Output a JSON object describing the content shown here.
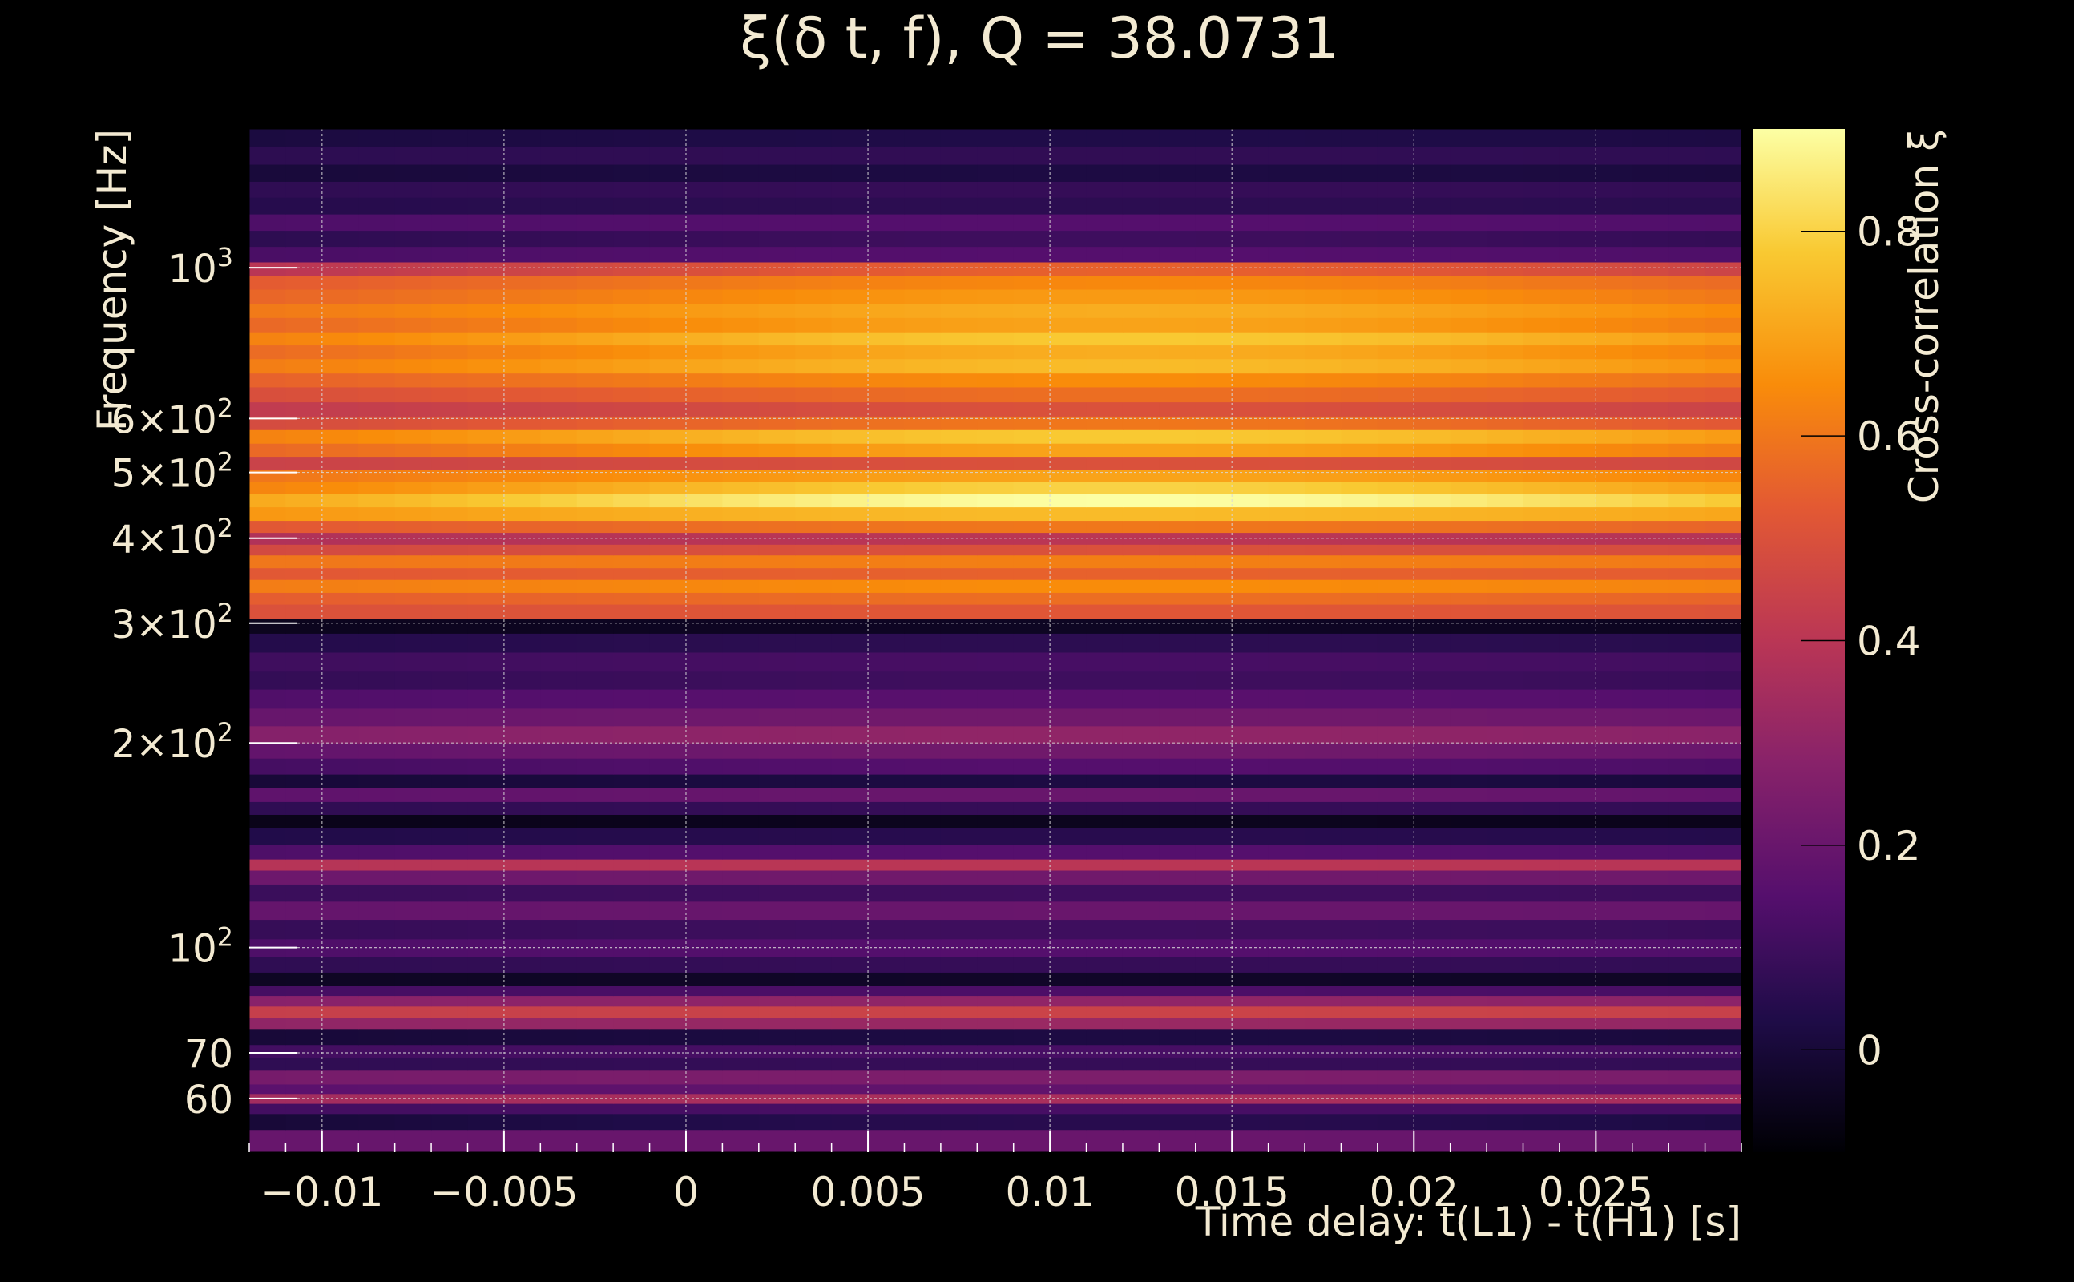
{
  "chart_data": {
    "type": "heatmap",
    "title": "ξ(δ t, f), Q = 38.0731",
    "xlabel": "Time delay: t(L1) - t(H1) [s]",
    "ylabel": "Frequency [Hz]",
    "colorbar_label": "Cross-correlation ξ",
    "xlim": [
      -0.012,
      0.029
    ],
    "ylim": [
      50,
      1600
    ],
    "y_scale": "log",
    "grid": true,
    "colorscale": "inferno",
    "clim": [
      -0.1,
      0.9
    ],
    "x_ticks": [
      {
        "value": -0.01,
        "label": "−0.01"
      },
      {
        "value": -0.005,
        "label": "−0.005"
      },
      {
        "value": 0,
        "label": "0"
      },
      {
        "value": 0.005,
        "label": "0.005"
      },
      {
        "value": 0.01,
        "label": "0.01"
      },
      {
        "value": 0.015,
        "label": "0.015"
      },
      {
        "value": 0.02,
        "label": "0.02"
      },
      {
        "value": 0.025,
        "label": "0.025"
      }
    ],
    "y_ticks": [
      {
        "value": 60,
        "base": "60",
        "exp": ""
      },
      {
        "value": 70,
        "base": "70",
        "exp": ""
      },
      {
        "value": 100,
        "base": "10",
        "exp": "2"
      },
      {
        "value": 200,
        "base": "2×10",
        "exp": "2"
      },
      {
        "value": 300,
        "base": "3×10",
        "exp": "2"
      },
      {
        "value": 400,
        "base": "4×10",
        "exp": "2"
      },
      {
        "value": 500,
        "base": "5×10",
        "exp": "2"
      },
      {
        "value": 600,
        "base": "6×10",
        "exp": "2"
      },
      {
        "value": 1000,
        "base": "10",
        "exp": "3"
      }
    ],
    "colorbar_ticks": [
      {
        "value": 0,
        "label": "0"
      },
      {
        "value": 0.2,
        "label": "0.2"
      },
      {
        "value": 0.4,
        "label": "0.4"
      },
      {
        "value": 0.6,
        "label": "0.6"
      },
      {
        "value": 0.8,
        "label": "0.8"
      }
    ],
    "time_bins": [
      -0.012,
      -0.011,
      -0.01,
      -0.009,
      -0.008,
      -0.007,
      -0.006,
      -0.005,
      -0.004,
      -0.003,
      -0.002,
      -0.001,
      0,
      0.001,
      0.002,
      0.003,
      0.004,
      0.005,
      0.006,
      0.007,
      0.008,
      0.009,
      0.01,
      0.011,
      0.012,
      0.013,
      0.014,
      0.015,
      0.016,
      0.017,
      0.018,
      0.019,
      0.02,
      0.021,
      0.022,
      0.023,
      0.024,
      0.025,
      0.026,
      0.027,
      0.028,
      0.029
    ],
    "freq_bands": [
      {
        "f_lo": 50,
        "f_hi": 54,
        "base": 0.18,
        "peak": 0.2,
        "width": 0.03
      },
      {
        "f_lo": 54,
        "f_hi": 57,
        "base": -0.05,
        "peak": 0.05,
        "width": 0.02
      },
      {
        "f_lo": 57,
        "f_hi": 59,
        "base": 0.1,
        "peak": 0.12,
        "width": 0.02
      },
      {
        "f_lo": 59,
        "f_hi": 61,
        "base": 0.3,
        "peak": 0.36,
        "width": 0.03
      },
      {
        "f_lo": 61,
        "f_hi": 63,
        "base": 0.15,
        "peak": 0.18,
        "width": 0.02
      },
      {
        "f_lo": 63,
        "f_hi": 66,
        "base": 0.22,
        "peak": 0.25,
        "width": 0.02
      },
      {
        "f_lo": 66,
        "f_hi": 69,
        "base": 0.05,
        "peak": 0.08,
        "width": 0.02
      },
      {
        "f_lo": 69,
        "f_hi": 72,
        "base": 0.1,
        "peak": 0.12,
        "width": 0.02
      },
      {
        "f_lo": 72,
        "f_hi": 76,
        "base": -0.02,
        "peak": 0.02,
        "width": 0.02
      },
      {
        "f_lo": 76,
        "f_hi": 79,
        "base": 0.28,
        "peak": 0.32,
        "width": 0.02
      },
      {
        "f_lo": 79,
        "f_hi": 82,
        "base": 0.42,
        "peak": 0.45,
        "width": 0.02
      },
      {
        "f_lo": 82,
        "f_hi": 85,
        "base": 0.26,
        "peak": 0.3,
        "width": 0.02
      },
      {
        "f_lo": 85,
        "f_hi": 88,
        "base": 0.1,
        "peak": 0.13,
        "width": 0.02
      },
      {
        "f_lo": 88,
        "f_hi": 92,
        "base": -0.05,
        "peak": -0.03,
        "width": 0.02
      },
      {
        "f_lo": 92,
        "f_hi": 97,
        "base": 0.05,
        "peak": 0.08,
        "width": 0.02
      },
      {
        "f_lo": 97,
        "f_hi": 103,
        "base": 0.12,
        "peak": 0.15,
        "width": 0.02
      },
      {
        "f_lo": 103,
        "f_hi": 110,
        "base": 0.06,
        "peak": 0.1,
        "width": 0.02
      },
      {
        "f_lo": 110,
        "f_hi": 117,
        "base": 0.18,
        "peak": 0.2,
        "width": 0.02
      },
      {
        "f_lo": 117,
        "f_hi": 124,
        "base": 0.08,
        "peak": 0.1,
        "width": 0.02
      },
      {
        "f_lo": 124,
        "f_hi": 130,
        "base": 0.2,
        "peak": 0.22,
        "width": 0.02
      },
      {
        "f_lo": 130,
        "f_hi": 135,
        "base": 0.38,
        "peak": 0.4,
        "width": 0.02
      },
      {
        "f_lo": 135,
        "f_hi": 142,
        "base": 0.12,
        "peak": 0.15,
        "width": 0.02
      },
      {
        "f_lo": 142,
        "f_hi": 150,
        "base": 0.02,
        "peak": 0.05,
        "width": 0.02
      },
      {
        "f_lo": 150,
        "f_hi": 157,
        "base": -0.07,
        "peak": -0.05,
        "width": 0.02
      },
      {
        "f_lo": 157,
        "f_hi": 164,
        "base": 0.05,
        "peak": 0.08,
        "width": 0.02
      },
      {
        "f_lo": 164,
        "f_hi": 172,
        "base": 0.15,
        "peak": 0.2,
        "width": 0.02
      },
      {
        "f_lo": 172,
        "f_hi": 180,
        "base": -0.02,
        "peak": 0.02,
        "width": 0.02
      },
      {
        "f_lo": 180,
        "f_hi": 190,
        "base": 0.08,
        "peak": 0.15,
        "width": 0.02
      },
      {
        "f_lo": 190,
        "f_hi": 200,
        "base": 0.15,
        "peak": 0.22,
        "width": 0.02
      },
      {
        "f_lo": 200,
        "f_hi": 212,
        "base": 0.22,
        "peak": 0.3,
        "width": 0.025
      },
      {
        "f_lo": 212,
        "f_hi": 225,
        "base": 0.15,
        "peak": 0.22,
        "width": 0.025
      },
      {
        "f_lo": 225,
        "f_hi": 240,
        "base": 0.1,
        "peak": 0.16,
        "width": 0.025
      },
      {
        "f_lo": 240,
        "f_hi": 255,
        "base": 0.05,
        "peak": 0.1,
        "width": 0.02
      },
      {
        "f_lo": 255,
        "f_hi": 272,
        "base": 0.08,
        "peak": 0.12,
        "width": 0.02
      },
      {
        "f_lo": 272,
        "f_hi": 290,
        "base": 0.02,
        "peak": 0.06,
        "width": 0.02
      },
      {
        "f_lo": 290,
        "f_hi": 305,
        "base": -0.06,
        "peak": -0.04,
        "width": 0.02
      },
      {
        "f_lo": 305,
        "f_hi": 320,
        "base": 0.48,
        "peak": 0.52,
        "width": 0.02
      },
      {
        "f_lo": 320,
        "f_hi": 333,
        "base": 0.5,
        "peak": 0.58,
        "width": 0.02
      },
      {
        "f_lo": 333,
        "f_hi": 348,
        "base": 0.58,
        "peak": 0.65,
        "width": 0.02
      },
      {
        "f_lo": 348,
        "f_hi": 362,
        "base": 0.5,
        "peak": 0.55,
        "width": 0.02
      },
      {
        "f_lo": 362,
        "f_hi": 378,
        "base": 0.58,
        "peak": 0.62,
        "width": 0.02
      },
      {
        "f_lo": 378,
        "f_hi": 392,
        "base": 0.45,
        "peak": 0.5,
        "width": 0.02
      },
      {
        "f_lo": 392,
        "f_hi": 408,
        "base": 0.35,
        "peak": 0.4,
        "width": 0.02
      },
      {
        "f_lo": 408,
        "f_hi": 425,
        "base": 0.45,
        "peak": 0.6,
        "width": 0.02
      },
      {
        "f_lo": 425,
        "f_hi": 445,
        "base": 0.6,
        "peak": 0.75,
        "width": 0.02
      },
      {
        "f_lo": 445,
        "f_hi": 465,
        "base": 0.62,
        "peak": 0.9,
        "width": 0.016
      },
      {
        "f_lo": 465,
        "f_hi": 485,
        "base": 0.55,
        "peak": 0.8,
        "width": 0.016
      },
      {
        "f_lo": 485,
        "f_hi": 505,
        "base": 0.55,
        "peak": 0.7,
        "width": 0.016
      },
      {
        "f_lo": 505,
        "f_hi": 528,
        "base": 0.42,
        "peak": 0.5,
        "width": 0.016
      },
      {
        "f_lo": 528,
        "f_hi": 552,
        "base": 0.5,
        "peak": 0.7,
        "width": 0.016
      },
      {
        "f_lo": 552,
        "f_hi": 578,
        "base": 0.55,
        "peak": 0.78,
        "width": 0.016
      },
      {
        "f_lo": 578,
        "f_hi": 605,
        "base": 0.42,
        "peak": 0.6,
        "width": 0.016
      },
      {
        "f_lo": 605,
        "f_hi": 635,
        "base": 0.38,
        "peak": 0.5,
        "width": 0.016
      },
      {
        "f_lo": 635,
        "f_hi": 668,
        "base": 0.45,
        "peak": 0.58,
        "width": 0.016
      },
      {
        "f_lo": 668,
        "f_hi": 700,
        "base": 0.5,
        "peak": 0.65,
        "width": 0.016
      },
      {
        "f_lo": 700,
        "f_hi": 735,
        "base": 0.55,
        "peak": 0.75,
        "width": 0.016
      },
      {
        "f_lo": 735,
        "f_hi": 770,
        "base": 0.5,
        "peak": 0.72,
        "width": 0.016
      },
      {
        "f_lo": 770,
        "f_hi": 805,
        "base": 0.55,
        "peak": 0.78,
        "width": 0.016
      },
      {
        "f_lo": 805,
        "f_hi": 845,
        "base": 0.5,
        "peak": 0.7,
        "width": 0.016
      },
      {
        "f_lo": 845,
        "f_hi": 885,
        "base": 0.55,
        "peak": 0.72,
        "width": 0.016
      },
      {
        "f_lo": 885,
        "f_hi": 930,
        "base": 0.5,
        "peak": 0.68,
        "width": 0.016
      },
      {
        "f_lo": 930,
        "f_hi": 975,
        "base": 0.48,
        "peak": 0.64,
        "width": 0.016
      },
      {
        "f_lo": 975,
        "f_hi": 1020,
        "base": 0.32,
        "peak": 0.55,
        "width": 0.016
      },
      {
        "f_lo": 1020,
        "f_hi": 1075,
        "base": 0.1,
        "peak": 0.15,
        "width": 0.02
      },
      {
        "f_lo": 1075,
        "f_hi": 1135,
        "base": 0.02,
        "peak": 0.1,
        "width": 0.02
      },
      {
        "f_lo": 1135,
        "f_hi": 1200,
        "base": 0.12,
        "peak": 0.15,
        "width": 0.02
      },
      {
        "f_lo": 1200,
        "f_hi": 1270,
        "base": 0.03,
        "peak": 0.06,
        "width": 0.02
      },
      {
        "f_lo": 1270,
        "f_hi": 1340,
        "base": 0.05,
        "peak": 0.08,
        "width": 0.02
      },
      {
        "f_lo": 1340,
        "f_hi": 1420,
        "base": -0.01,
        "peak": 0.02,
        "width": 0.02
      },
      {
        "f_lo": 1420,
        "f_hi": 1510,
        "base": 0.05,
        "peak": 0.07,
        "width": 0.02
      },
      {
        "f_lo": 1510,
        "f_hi": 1600,
        "base": 0.0,
        "peak": 0.03,
        "width": 0.02
      }
    ],
    "peak_time": 0.012
  },
  "colors": {
    "background": "#000000",
    "text": "#f3ead2",
    "grid": "#d8d8d8"
  }
}
